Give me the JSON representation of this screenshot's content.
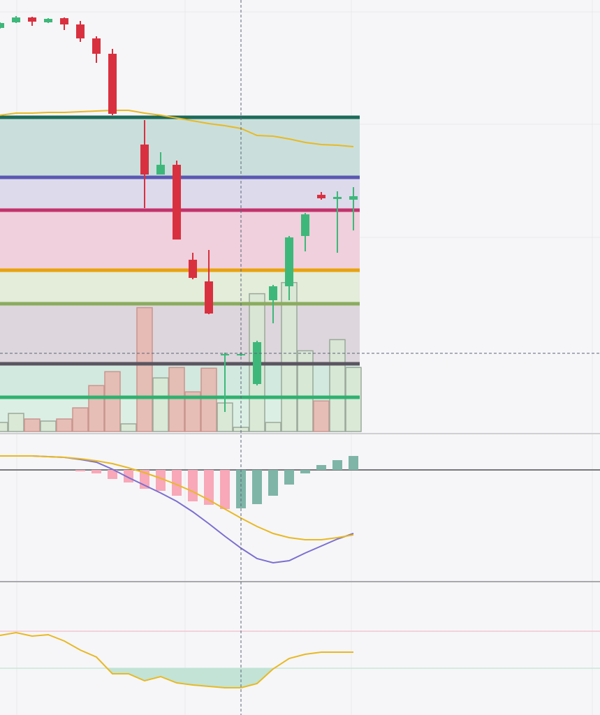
{
  "chart_data": [
    {
      "type": "candlestick",
      "open": [
        580,
        588,
        595,
        588,
        594,
        585,
        565,
        543,
        null,
        413,
        370,
        384,
        248,
        217,
        112,
        113,
        70,
        190,
        210,
        282,
        341,
        335,
        334
      ],
      "high": [
        588,
        597,
        596,
        594,
        595,
        590,
        568,
        550,
        null,
        448,
        402,
        390,
        258,
        262,
        115,
        114,
        132,
        212,
        282,
        315,
        345,
        346,
        352
      ],
      "low": [
        579,
        587,
        583,
        587,
        577,
        560,
        530,
        455,
        null,
        322,
        370,
        277,
        220,
        170,
        30,
        110,
        68,
        157,
        190,
        260,
        334,
        258,
        290
      ],
      "close": [
        587,
        595,
        589,
        593,
        585,
        565,
        543,
        457,
        null,
        370,
        384,
        277,
        222,
        171,
        113,
        113,
        130,
        210,
        280,
        313,
        336,
        338,
        339
      ],
      "up_color": "#3db87a",
      "down_color": "#d9303f",
      "ylim": [
        0,
        620
      ],
      "levels": [
        {
          "value": 452,
          "color": "#1d6b5b",
          "fill": "#cadfdc"
        },
        {
          "value": 366,
          "color": "#5a58b2",
          "fill": "#dddaeb"
        },
        {
          "value": 319,
          "color": "#c2336c",
          "fill": "#efd0dc"
        },
        {
          "value": 233,
          "color": "#e9a20e",
          "fill": "#e4ecda"
        },
        {
          "value": 185,
          "color": "#8aab5e",
          "fill": "#ddd6dc"
        },
        {
          "value": 99,
          "color": "#5a5560",
          "fill": "#d2e9df"
        },
        {
          "value": 51,
          "color": "#2fb170",
          "fill": "#dcefe4"
        }
      ],
      "ma": {
        "color": "#e8b923",
        "values": [
          455,
          458,
          458,
          459,
          459,
          460,
          461,
          462,
          462,
          458,
          455,
          451,
          447,
          443,
          440,
          436,
          426,
          425,
          421,
          416,
          413,
          412,
          410
        ]
      }
    },
    {
      "type": "bar",
      "values": [
        13,
        26,
        18,
        15,
        18,
        34,
        66,
        86,
        11,
        178,
        77,
        92,
        57,
        91,
        41,
        6,
        198,
        13,
        214,
        116,
        44,
        132,
        92
      ],
      "up_color": "#d8e8d4",
      "down_color": "#e8b5ae",
      "ylim": [
        0,
        620
      ]
    },
    {
      "type": "macd",
      "histogram": {
        "values": [
          null,
          null,
          null,
          null,
          null,
          -2,
          -5,
          -13,
          -18,
          -27,
          -30,
          -37,
          -45,
          -50,
          -56,
          -55,
          -49,
          -37,
          -21,
          -5,
          7,
          14,
          20
        ],
        "falling_color": "#f8a8b8",
        "rising_color": "#7fb5a7"
      },
      "series": [
        {
          "color": "#7b6fd0",
          "values": [
            20,
            20,
            20,
            19,
            18,
            15,
            11,
            1,
            -11,
            -22,
            -33,
            -45,
            -60,
            -77,
            -95,
            -112,
            -127,
            -133,
            -130,
            -119,
            -109,
            -99,
            -91
          ]
        },
        {
          "color": "#e8b923",
          "values": [
            20,
            20,
            20,
            19,
            18,
            16,
            13,
            9,
            3,
            -4,
            -12,
            -21,
            -31,
            -43,
            -56,
            -69,
            -81,
            -91,
            -97,
            -100,
            -100,
            -97,
            -93
          ]
        }
      ],
      "ylim": [
        -160,
        51
      ]
    },
    {
      "type": "line",
      "values": [
        114,
        118,
        113,
        115,
        106,
        93,
        83,
        59,
        59,
        49,
        55,
        46,
        43,
        41,
        39,
        39,
        45,
        66,
        81,
        87,
        90,
        90,
        90
      ],
      "color": "#e8b923",
      "levels": [
        {
          "value": 120,
          "color": "#f4c6d0"
        },
        {
          "value": 67,
          "color": "#c9e8d8"
        }
      ],
      "fill_color": "#c2e3d6",
      "ylim": [
        0,
        191
      ]
    }
  ]
}
